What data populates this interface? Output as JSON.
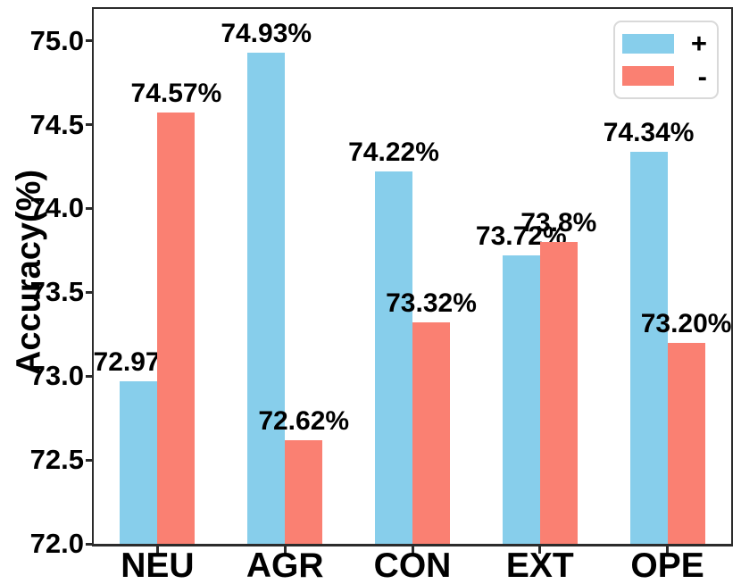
{
  "chart_data": {
    "type": "bar",
    "title": "",
    "xlabel": "",
    "ylabel": "Accuracy(%)",
    "categories": [
      "NEU",
      "AGR",
      "CON",
      "EXT",
      "OPE"
    ],
    "series": [
      {
        "name": "+",
        "key": "plus",
        "color": "#87CEEB",
        "values": [
          72.97,
          74.93,
          74.22,
          73.72,
          74.34
        ],
        "labels": [
          "72.97%",
          "74.93%",
          "74.22%",
          "73.72%",
          "74.34%"
        ]
      },
      {
        "name": "-",
        "key": "minus",
        "color": "#FA8072",
        "values": [
          74.57,
          72.62,
          73.32,
          73.8,
          73.2
        ],
        "labels": [
          "74.57%",
          "72.62%",
          "73.32%",
          "73.8%",
          "73.20%"
        ]
      }
    ],
    "yticks": [
      "72.0",
      "72.5",
      "73.0",
      "73.5",
      "74.0",
      "74.5",
      "75.0"
    ],
    "ylim": [
      72.0,
      75.19
    ],
    "grid": false,
    "legend_position": "upper right"
  }
}
